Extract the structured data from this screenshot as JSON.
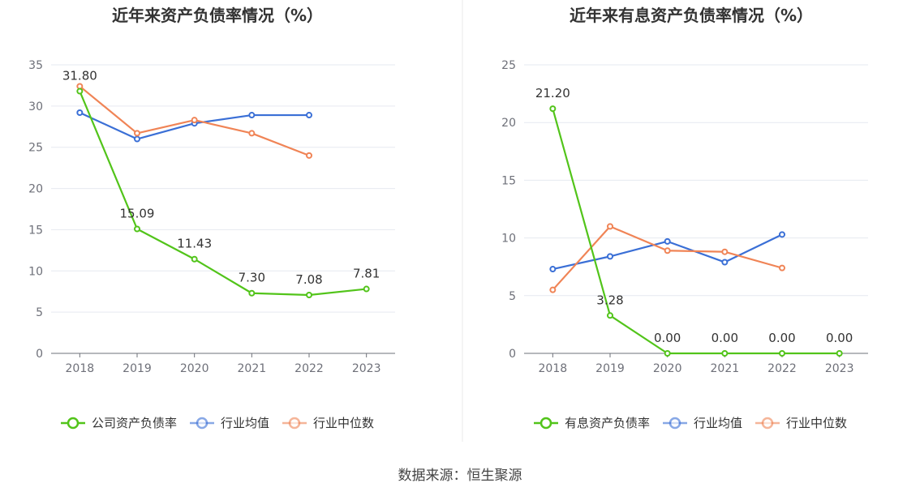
{
  "source": "数据来源：恒生聚源",
  "colors": {
    "company": "#52c41a",
    "industry_avg": "#3a6fd6",
    "industry_median": "#f08456",
    "grid": "#e6e9f0",
    "axis": "#6e7079",
    "divider": "#e8e8e8"
  },
  "chart_data": [
    {
      "type": "line",
      "title": "近年来资产负债率情况（%）",
      "x": [
        "2018",
        "2019",
        "2020",
        "2021",
        "2022",
        "2023"
      ],
      "ylim": [
        0,
        35
      ],
      "yticks": [
        0,
        5,
        10,
        15,
        20,
        25,
        30,
        35
      ],
      "grid": true,
      "legend_position": "bottom",
      "series": [
        {
          "name": "公司资产负债率",
          "color_key": "company",
          "values": [
            31.8,
            15.09,
            11.43,
            7.3,
            7.08,
            7.81
          ],
          "labels": [
            "31.80",
            "15.09",
            "11.43",
            "7.30",
            "7.08",
            "7.81"
          ]
        },
        {
          "name": "行业均值",
          "color_key": "industry_avg",
          "values": [
            29.2,
            26.0,
            27.9,
            28.9,
            28.9,
            null
          ]
        },
        {
          "name": "行业中位数",
          "color_key": "industry_median",
          "values": [
            32.4,
            26.7,
            28.3,
            26.7,
            24.0,
            null
          ]
        }
      ]
    },
    {
      "type": "line",
      "title": "近年来有息资产负债率情况（%）",
      "x": [
        "2018",
        "2019",
        "2020",
        "2021",
        "2022",
        "2023"
      ],
      "ylim": [
        0,
        25
      ],
      "yticks": [
        0,
        5,
        10,
        15,
        20,
        25
      ],
      "grid": true,
      "legend_position": "bottom",
      "series": [
        {
          "name": "有息资产负债率",
          "color_key": "company",
          "values": [
            21.2,
            3.28,
            0.0,
            0.0,
            0.0,
            0.0
          ],
          "labels": [
            "21.20",
            "3.28",
            "0.00",
            "0.00",
            "0.00",
            "0.00"
          ]
        },
        {
          "name": "行业均值",
          "color_key": "industry_avg",
          "values": [
            7.3,
            8.4,
            9.7,
            7.9,
            10.3,
            null
          ]
        },
        {
          "name": "行业中位数",
          "color_key": "industry_median",
          "values": [
            5.5,
            11.0,
            8.9,
            8.8,
            7.4,
            null
          ]
        }
      ]
    }
  ]
}
